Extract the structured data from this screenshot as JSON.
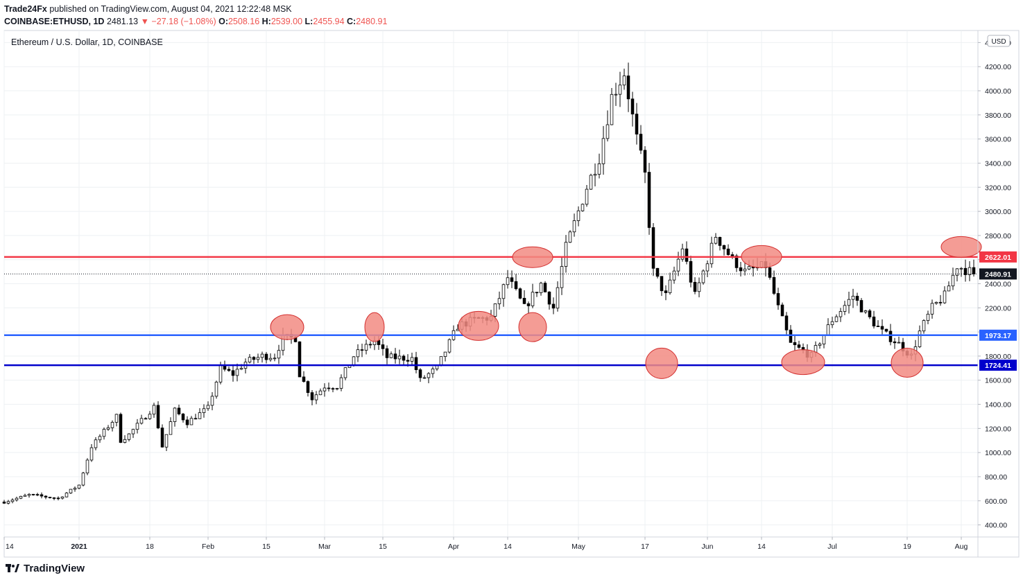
{
  "header": {
    "publisher": "Trade24Fx",
    "published_text": "published on TradingView.com, August 04, 2021 12:22:48 MSK",
    "symbol": "COINBASE:ETHUSD, 1D",
    "last": "2481.13",
    "change": "−27.18 (−1.08%)",
    "o_label": "O:",
    "o_value": "2508.16",
    "h_label": "H:",
    "h_value": "2539.00",
    "l_label": "L:",
    "l_value": "2455.94",
    "c_label": "C:",
    "c_value": "2480.91"
  },
  "footer": {
    "brand": "TradingView"
  },
  "colors": {
    "up": "#ffffff",
    "down": "#000000",
    "outline": "#000000",
    "resistance": "#f23645",
    "support1": "#2962ff",
    "support2": "#0000cc",
    "highlight_fill": "#f28b82",
    "highlight_stroke": "#d32f2f",
    "grid": "#eef0f3"
  },
  "chart_data": {
    "type": "candlestick",
    "title": "Ethereum / U.S. Dollar, 1D, COINBASE",
    "currency": "USD",
    "ylim": [
      300,
      4500
    ],
    "y_ticks": [
      400,
      600,
      800,
      1000,
      1200,
      1400,
      1600,
      1800,
      2000,
      2200,
      2400,
      2600,
      2800,
      3000,
      3200,
      3400,
      3600,
      3800,
      4000,
      4200,
      4400
    ],
    "x_start": "2020-12-14",
    "x_end": "2021-08-05",
    "x_ticks": [
      {
        "label": "14",
        "date": "2020-12-14"
      },
      {
        "label": "2021",
        "date": "2021-01-01"
      },
      {
        "label": "18",
        "date": "2021-01-18"
      },
      {
        "label": "Feb",
        "date": "2021-02-01"
      },
      {
        "label": "15",
        "date": "2021-02-15"
      },
      {
        "label": "Mar",
        "date": "2021-03-01"
      },
      {
        "label": "15",
        "date": "2021-03-15"
      },
      {
        "label": "Apr",
        "date": "2021-04-01"
      },
      {
        "label": "14",
        "date": "2021-04-14"
      },
      {
        "label": "May",
        "date": "2021-05-01"
      },
      {
        "label": "17",
        "date": "2021-05-17"
      },
      {
        "label": "Jun",
        "date": "2021-06-01"
      },
      {
        "label": "14",
        "date": "2021-06-14"
      },
      {
        "label": "Jul",
        "date": "2021-07-01"
      },
      {
        "label": "19",
        "date": "2021-07-19"
      },
      {
        "label": "Aug",
        "date": "2021-08-01"
      }
    ],
    "close_path": [
      [
        "2020-12-14",
        590
      ],
      [
        "2020-12-20",
        650
      ],
      [
        "2020-12-27",
        620
      ],
      [
        "2021-01-01",
        730
      ],
      [
        "2021-01-04",
        1050
      ],
      [
        "2021-01-10",
        1300
      ],
      [
        "2021-01-11",
        1100
      ],
      [
        "2021-01-13",
        1150
      ],
      [
        "2021-01-19",
        1380
      ],
      [
        "2021-01-21",
        1050
      ],
      [
        "2021-01-24",
        1350
      ],
      [
        "2021-01-27",
        1250
      ],
      [
        "2021-02-01",
        1370
      ],
      [
        "2021-02-04",
        1700
      ],
      [
        "2021-02-07",
        1650
      ],
      [
        "2021-02-10",
        1750
      ],
      [
        "2021-02-14",
        1800
      ],
      [
        "2021-02-17",
        1800
      ],
      [
        "2021-02-19",
        1950
      ],
      [
        "2021-02-22",
        1950
      ],
      [
        "2021-02-23",
        1650
      ],
      [
        "2021-02-26",
        1450
      ],
      [
        "2021-03-01",
        1550
      ],
      [
        "2021-03-04",
        1550
      ],
      [
        "2021-03-08",
        1800
      ],
      [
        "2021-03-13",
        1930
      ],
      [
        "2021-03-16",
        1790
      ],
      [
        "2021-03-22",
        1780
      ],
      [
        "2021-03-24",
        1600
      ],
      [
        "2021-03-28",
        1700
      ],
      [
        "2021-04-02",
        2050
      ],
      [
        "2021-04-06",
        2100
      ],
      [
        "2021-04-10",
        2120
      ],
      [
        "2021-04-14",
        2450
      ],
      [
        "2021-04-18",
        2200
      ],
      [
        "2021-04-22",
        2400
      ],
      [
        "2021-04-25",
        2200
      ],
      [
        "2021-04-28",
        2700
      ],
      [
        "2021-05-03",
        3200
      ],
      [
        "2021-05-06",
        3450
      ],
      [
        "2021-05-09",
        3950
      ],
      [
        "2021-05-12",
        4150
      ],
      [
        "2021-05-15",
        3600
      ],
      [
        "2021-05-17",
        3300
      ],
      [
        "2021-05-19",
        2500
      ],
      [
        "2021-05-22",
        2300
      ],
      [
        "2021-05-26",
        2700
      ],
      [
        "2021-05-29",
        2300
      ],
      [
        "2021-06-03",
        2800
      ],
      [
        "2021-06-07",
        2600
      ],
      [
        "2021-06-10",
        2500
      ],
      [
        "2021-06-15",
        2550
      ],
      [
        "2021-06-18",
        2200
      ],
      [
        "2021-06-21",
        1900
      ],
      [
        "2021-06-26",
        1800
      ],
      [
        "2021-07-01",
        2100
      ],
      [
        "2021-07-06",
        2300
      ],
      [
        "2021-07-09",
        2150
      ],
      [
        "2021-07-13",
        2000
      ],
      [
        "2021-07-17",
        1900
      ],
      [
        "2021-07-20",
        1800
      ],
      [
        "2021-07-22",
        2000
      ],
      [
        "2021-07-25",
        2200
      ],
      [
        "2021-07-28",
        2300
      ],
      [
        "2021-07-31",
        2550
      ],
      [
        "2021-08-03",
        2500
      ],
      [
        "2021-08-04",
        2481
      ]
    ],
    "levels": [
      {
        "name": "resistance",
        "value": 2622.01,
        "label": "2622.01"
      },
      {
        "name": "support-upper",
        "value": 1973.17,
        "label": "1973.17"
      },
      {
        "name": "support-lower",
        "value": 1724.41,
        "label": "1724.41"
      }
    ],
    "last_price": {
      "value": 2480.91,
      "label": "2480.91"
    },
    "highlights": [
      {
        "date": "2021-02-20",
        "value": 2040
      },
      {
        "date": "2021-03-13",
        "value": 2040
      },
      {
        "date": "2021-04-07",
        "value": 2050
      },
      {
        "date": "2021-04-20",
        "value": 2620
      },
      {
        "date": "2021-04-20",
        "value": 2040
      },
      {
        "date": "2021-05-21",
        "value": 1740
      },
      {
        "date": "2021-06-14",
        "value": 2625
      },
      {
        "date": "2021-06-24",
        "value": 1750
      },
      {
        "date": "2021-07-19",
        "value": 1745
      },
      {
        "date": "2021-08-01",
        "value": 2705
      }
    ]
  }
}
